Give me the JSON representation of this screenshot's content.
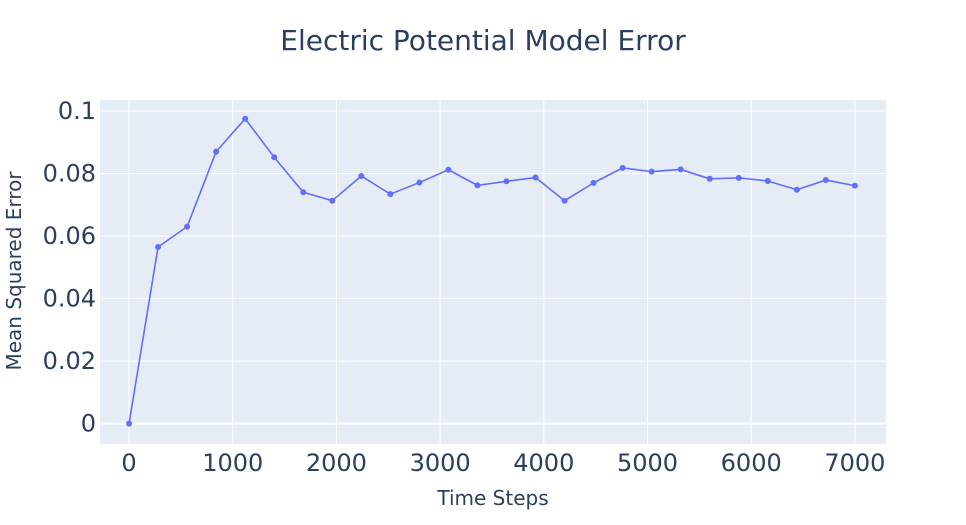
{
  "chart_data": {
    "type": "line",
    "title": "Electric Potential Model Error",
    "xlabel": "Time Steps",
    "ylabel": "Mean Squared Error",
    "xlim": [
      -280,
      7300
    ],
    "ylim": [
      -0.0065,
      0.1035
    ],
    "x_ticks": [
      0,
      1000,
      2000,
      3000,
      4000,
      5000,
      6000,
      7000
    ],
    "y_ticks": [
      0,
      0.02,
      0.04,
      0.06,
      0.08,
      0.1
    ],
    "x_tick_labels": [
      "0",
      "1000",
      "2000",
      "3000",
      "4000",
      "5000",
      "6000",
      "7000"
    ],
    "y_tick_labels": [
      "0",
      "0.02",
      "0.04",
      "0.06",
      "0.08",
      "0.1"
    ],
    "grid": true,
    "legend": false,
    "colors": {
      "series": "#636efa",
      "plot_bg": "#e5ecf6",
      "grid": "#ffffff",
      "text": "#2a3f5f"
    },
    "series": [
      {
        "x": [
          0,
          280,
          560,
          840,
          1120,
          1400,
          1680,
          1960,
          2240,
          2520,
          2800,
          3080,
          3360,
          3640,
          3920,
          4200,
          4480,
          4760,
          5040,
          5320,
          5600,
          5880,
          6160,
          6440,
          6720,
          7000
        ],
        "y": [
          0.0,
          0.0565,
          0.063,
          0.087,
          0.0975,
          0.0852,
          0.074,
          0.0713,
          0.0792,
          0.0734,
          0.0771,
          0.0812,
          0.0762,
          0.0775,
          0.0787,
          0.0713,
          0.077,
          0.0818,
          0.0806,
          0.0813,
          0.0783,
          0.0786,
          0.0776,
          0.0748,
          0.0779,
          0.0761
        ]
      }
    ]
  }
}
